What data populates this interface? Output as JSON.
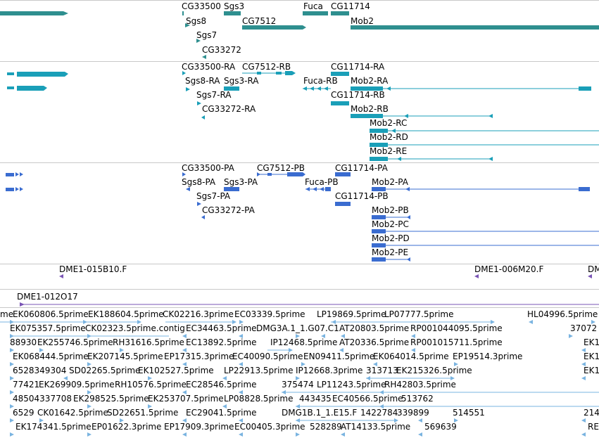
{
  "colors": {
    "gene": "#2e8f8f",
    "transcript": "#1a9fb8",
    "protein": "#3a6cd0",
    "clone": "#7a55b5",
    "est": "#7ab4e0"
  },
  "genes": {
    "labels": [
      "Sgs3",
      "CG33500",
      "Fuca",
      "CG11714",
      "Sgs8",
      "CG7512",
      "Mob2",
      "Sgs7",
      "CG33272"
    ]
  },
  "transcripts": {
    "labels": [
      "CG33500-RA",
      "CG7512-RB",
      "CG11714-RA",
      "Sgs8-RA",
      "Sgs3-RA",
      "Fuca-RB",
      "Mob2-RA",
      "Sgs7-RA",
      "CG11714-RB",
      "CG33272-RA",
      "Mob2-RB",
      "Mob2-RC",
      "Mob2-RD",
      "Mob2-RE"
    ]
  },
  "proteins": {
    "labels": [
      "CG33500-PA",
      "CG7512-PB",
      "CG11714-PA",
      "Sgs8-PA",
      "Sgs3-PA",
      "Fuca-PB",
      "Mob2-PA",
      "Sgs7-PA",
      "CG11714-PB",
      "CG33272-PA",
      "Mob2-PB",
      "Mob2-PC",
      "Mob2-PD",
      "Mob2-PE"
    ]
  },
  "clones": {
    "labels": [
      "DME1-015B10.F",
      "DME1-006M20.F",
      "DM",
      "DME1-012O17"
    ]
  },
  "ests": {
    "rows": [
      [
        "me",
        "EK060806.5prime",
        "EK188604.5prime",
        "CK02216.3prime",
        "EC03339.5prime",
        "LP19869.5prime",
        "LP07777.5prime",
        "HL04996.5prime"
      ],
      [
        "EK075357.5prime",
        "CK02323.5prime.contig",
        "EC34463.5prime",
        "DMG3A.1_1.G07.C1",
        "AT20803.5prime",
        "RP001044095.5prime",
        "37072"
      ],
      [
        "88930",
        "EK255746.5prime",
        "RH31616.5prime",
        "EC13892.5prime",
        "IP12468.5prime",
        "AT20336.5prime",
        "RP001015711.5prime",
        "EK1"
      ],
      [
        "EK068444.5prime",
        "EK207145.5prime",
        "EP17315.3prime",
        "EC40090.5prime",
        "EN09411.5prime",
        "EK064014.5prime",
        "EP19514.3prime",
        "EK1"
      ],
      [
        "6528349304",
        "SD02265.5prime",
        "EK102527.5prime",
        "LP22913.5prime",
        "IP12668.3prime",
        "313713",
        "EK215326.5prime",
        "EK1"
      ],
      [
        "77421",
        "EK269909.5prime",
        "RH10576.5prime",
        "EC28546.5prime",
        "375474",
        "LP11243.5prime",
        "RH42803.5prime"
      ],
      [
        "48504337708",
        "EK298525.5prime",
        "EK253707.5prime",
        "LP08828.5prime",
        "443435",
        "EC40566.5prime",
        "513762"
      ],
      [
        "6529",
        "CK01642.5prime",
        "SD22651.5prime",
        "EC29041.5prime",
        "DMG1B.1_1.E15.F",
        "1422784",
        "339899",
        "514551",
        "214"
      ],
      [
        "EK174341.5prime",
        "EP01622.3prime",
        "EP17909.3prime",
        "EC00405.3prime",
        "528289",
        "AT14133.5prime",
        "569639",
        "RE"
      ]
    ]
  }
}
